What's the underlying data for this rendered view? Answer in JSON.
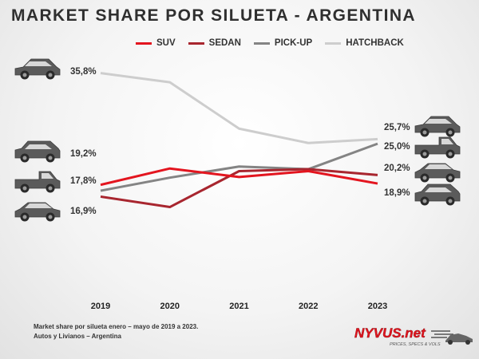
{
  "title": "MARKET SHARE POR SILUETA - ARGENTINA",
  "footnote": {
    "line1": "Market share por silueta enero – mayo de 2019 a 2023.",
    "line2": "Autos y Livianos – Argentina"
  },
  "brand": {
    "name": "NYVUS.net",
    "tagline": "PRICES, SPECS & VOLS"
  },
  "chart_data": {
    "type": "line",
    "title": "MARKET SHARE POR SILUETA - ARGENTINA",
    "x": [
      "2019",
      "2020",
      "2021",
      "2022",
      "2023"
    ],
    "y_unit": "%",
    "ylim": [
      10,
      40
    ],
    "grid": false,
    "legend": "top",
    "series": [
      {
        "name": "SUV",
        "color": "#e3151f",
        "values": [
          18.7,
          21.2,
          19.9,
          20.8,
          18.9
        ],
        "labels": {
          "start": "",
          "end": "18,9%"
        }
      },
      {
        "name": "SEDAN",
        "color": "#a8262f",
        "values": [
          16.9,
          15.3,
          20.8,
          21.1,
          20.2
        ],
        "labels": {
          "start": "16,9%",
          "end": "20,2%"
        }
      },
      {
        "name": "PICK-UP",
        "color": "#848484",
        "values": [
          17.8,
          19.8,
          21.5,
          21.1,
          25.0
        ],
        "labels": {
          "start": "17,8%",
          "end": "25,0%"
        }
      },
      {
        "name": "HATCHBACK",
        "color": "#cdcdcd",
        "values": [
          35.8,
          34.4,
          27.3,
          25.1,
          25.7
        ],
        "labels": {
          "start": "35,8%",
          "end": "25,7%"
        }
      }
    ],
    "extra_labels": [
      "19,2%"
    ]
  },
  "icons": {
    "left": [
      "hatchback-car-icon",
      "suv-car-icon",
      "pickup-truck-icon",
      "sedan-car-icon"
    ],
    "right": [
      "hatchback-car-icon",
      "pickup-truck-icon",
      "sedan-car-icon",
      "suv-car-icon"
    ]
  }
}
